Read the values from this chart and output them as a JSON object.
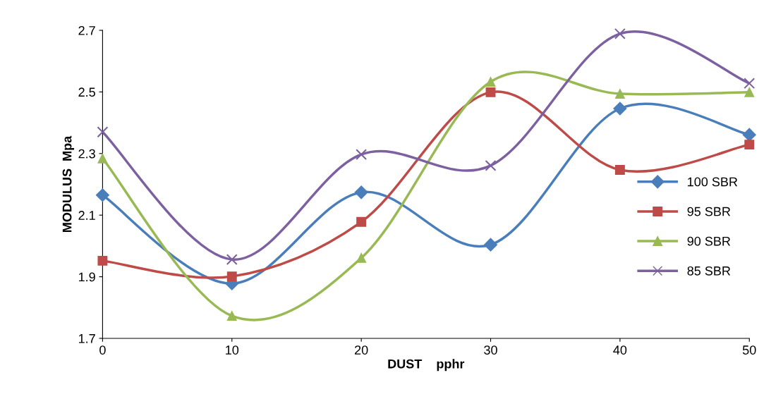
{
  "chart_data": {
    "type": "line",
    "xlabel": "DUST    pphr",
    "ylabel": "MODULUS  Mpa",
    "x": [
      0,
      10,
      20,
      30,
      40,
      50
    ],
    "series": [
      {
        "name": "100 SBR",
        "color": "#4a7ebb",
        "marker": "diamond",
        "values": [
          2.165,
          1.878,
          2.174,
          2.004,
          2.446,
          2.361
        ]
      },
      {
        "name": "95 SBR",
        "color": "#be4b48",
        "marker": "square",
        "values": [
          1.952,
          1.901,
          2.078,
          2.499,
          2.247,
          2.329
        ]
      },
      {
        "name": "90 SBR",
        "color": "#98b954",
        "marker": "triangle",
        "values": [
          2.284,
          1.773,
          1.961,
          2.533,
          2.494,
          2.499
        ]
      },
      {
        "name": "85 SBR",
        "color": "#7d60a0",
        "marker": "cross",
        "values": [
          2.37,
          1.956,
          2.297,
          2.261,
          2.689,
          2.528
        ]
      }
    ],
    "xlim": [
      0,
      50
    ],
    "xticks": [
      0,
      10,
      20,
      30,
      40,
      50
    ],
    "ylim": [
      1.7,
      2.7
    ],
    "yticks": [
      {
        "value": 1.7,
        "label": "1.7"
      },
      {
        "value": 1.9,
        "label": "1.9"
      },
      {
        "value": 2.1,
        "label": "2.1"
      },
      {
        "value": 2.3,
        "label": "2.3"
      },
      {
        "value": 2.5,
        "label": "2.5"
      },
      {
        "value": 2.7,
        "label": "2.7"
      }
    ],
    "grid": false,
    "legend": "right",
    "line_style": "solid"
  }
}
